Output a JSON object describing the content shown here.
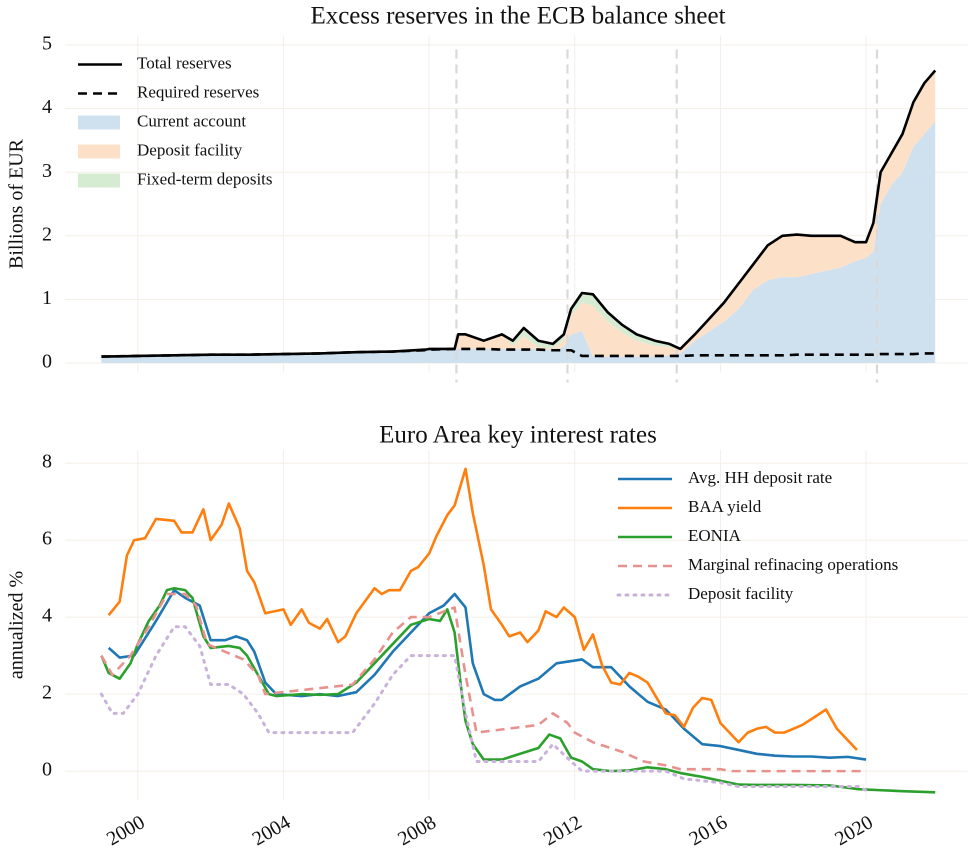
{
  "chart_data": [
    {
      "type": "line",
      "title": "Excess reserves in the ECB balance sheet",
      "ylabel": "Billions of EUR",
      "xlim": [
        1998,
        2022.8
      ],
      "xticks": [
        2000,
        2004,
        2008,
        2012,
        2016,
        2020
      ],
      "xtick_labels": false,
      "ylim": [
        -0.15,
        5.15
      ],
      "yticks": [
        0,
        1,
        2,
        3,
        4,
        5
      ],
      "grid": true,
      "legend": "upper left",
      "vlines": [
        2008.75,
        2011.8,
        2014.8,
        2020.3
      ],
      "x": [
        1999,
        2000,
        2001,
        2002,
        2003,
        2004,
        2005,
        2006,
        2007,
        2007.9,
        2008,
        2008.7,
        2008.8,
        2009,
        2009.5,
        2010,
        2010.3,
        2010.6,
        2011,
        2011.4,
        2011.7,
        2011.9,
        2012.2,
        2012.5,
        2012.9,
        2013.3,
        2013.7,
        2014.2,
        2014.6,
        2014.9,
        2015.3,
        2015.7,
        2016.1,
        2016.5,
        2016.9,
        2017.3,
        2017.7,
        2018.1,
        2018.5,
        2018.9,
        2019.3,
        2019.7,
        2020,
        2020.2,
        2020.4,
        2020.7,
        2021,
        2021.3,
        2021.6,
        2021.9
      ],
      "series": [
        {
          "name": "Total reserves",
          "color": "#000000",
          "style": "solid",
          "values": [
            0.1,
            0.11,
            0.12,
            0.13,
            0.13,
            0.14,
            0.15,
            0.17,
            0.18,
            0.21,
            0.22,
            0.22,
            0.45,
            0.45,
            0.35,
            0.45,
            0.35,
            0.55,
            0.35,
            0.3,
            0.45,
            0.85,
            1.1,
            1.08,
            0.8,
            0.6,
            0.45,
            0.35,
            0.3,
            0.22,
            0.45,
            0.7,
            0.95,
            1.25,
            1.55,
            1.85,
            2.0,
            2.02,
            2.0,
            2.0,
            2.0,
            1.9,
            1.9,
            2.2,
            3.0,
            3.3,
            3.6,
            4.1,
            4.4,
            4.6
          ]
        },
        {
          "name": "Required reserves",
          "color": "#000000",
          "style": "dashed",
          "values": [
            0.1,
            0.11,
            0.12,
            0.13,
            0.13,
            0.14,
            0.15,
            0.17,
            0.18,
            0.2,
            0.21,
            0.22,
            0.22,
            0.22,
            0.22,
            0.21,
            0.21,
            0.21,
            0.21,
            0.2,
            0.2,
            0.2,
            0.11,
            0.11,
            0.11,
            0.11,
            0.11,
            0.11,
            0.11,
            0.11,
            0.12,
            0.12,
            0.12,
            0.12,
            0.12,
            0.12,
            0.12,
            0.13,
            0.13,
            0.13,
            0.13,
            0.13,
            0.13,
            0.13,
            0.14,
            0.14,
            0.14,
            0.14,
            0.15,
            0.15
          ]
        },
        {
          "name": "Current account",
          "color": "#cfe1ef",
          "style": "area",
          "values": [
            0.1,
            0.11,
            0.12,
            0.13,
            0.13,
            0.14,
            0.15,
            0.17,
            0.18,
            0.21,
            0.22,
            0.22,
            0.22,
            0.22,
            0.22,
            0.22,
            0.22,
            0.22,
            0.22,
            0.21,
            0.25,
            0.45,
            0.5,
            0.1,
            0.1,
            0.1,
            0.1,
            0.1,
            0.12,
            0.15,
            0.35,
            0.5,
            0.65,
            0.85,
            1.15,
            1.3,
            1.35,
            1.35,
            1.4,
            1.45,
            1.5,
            1.6,
            1.65,
            1.75,
            2.5,
            2.8,
            3.0,
            3.4,
            3.6,
            3.8
          ]
        },
        {
          "name": "Deposit facility",
          "color": "#fde0c8",
          "style": "area",
          "values": [
            0,
            0,
            0,
            0,
            0,
            0,
            0,
            0,
            0,
            0,
            0,
            0,
            0.23,
            0.23,
            0.13,
            0.23,
            0.05,
            0.2,
            0.03,
            0.02,
            0.1,
            0.3,
            0.45,
            0.8,
            0.55,
            0.38,
            0.25,
            0.17,
            0.13,
            0.07,
            0.1,
            0.2,
            0.3,
            0.4,
            0.4,
            0.55,
            0.65,
            0.67,
            0.6,
            0.55,
            0.5,
            0.3,
            0.25,
            0.45,
            0.5,
            0.5,
            0.6,
            0.7,
            0.8,
            0.8
          ]
        },
        {
          "name": "Fixed-term deposits",
          "color": "#d5ebd2",
          "style": "area",
          "values": [
            0,
            0,
            0,
            0,
            0,
            0,
            0,
            0,
            0,
            0,
            0,
            0,
            0,
            0,
            0,
            0,
            0.08,
            0.13,
            0.1,
            0.07,
            0.1,
            0.1,
            0.15,
            0.18,
            0.15,
            0.12,
            0.1,
            0.08,
            0.05,
            0,
            0,
            0,
            0,
            0,
            0,
            0,
            0,
            0,
            0,
            0,
            0,
            0,
            0,
            0,
            0,
            0,
            0,
            0,
            0,
            0
          ]
        }
      ]
    },
    {
      "type": "line",
      "title": "Euro Area key interest rates",
      "ylabel": "annualized %",
      "xlim": [
        1998,
        2022.8
      ],
      "xticks": [
        2000,
        2004,
        2008,
        2012,
        2016,
        2020
      ],
      "xtick_labels": true,
      "ylim": [
        -0.75,
        8.34
      ],
      "yticks": [
        0,
        2,
        4,
        6,
        8
      ],
      "grid": true,
      "legend": "upper right",
      "series": [
        {
          "name": "Avg. HH deposit rate",
          "color": "#1f77b4",
          "style": "solid",
          "x": [
            1999.2,
            1999.5,
            1999.9,
            2000.5,
            2001,
            2001.3,
            2001.7,
            2002,
            2002.4,
            2002.7,
            2003,
            2003.2,
            2003.5,
            2003.8,
            2004.5,
            2005,
            2005.5,
            2006,
            2006.5,
            2007,
            2007.5,
            2008,
            2008.4,
            2008.7,
            2009,
            2009.2,
            2009.5,
            2009.8,
            2010,
            2010.5,
            2011,
            2011.5,
            2012.2,
            2012.5,
            2013,
            2013.5,
            2014,
            2014.5,
            2015,
            2015.5,
            2016,
            2016.5,
            2017,
            2017.5,
            2018,
            2018.5,
            2019,
            2019.5,
            2020
          ],
          "values": [
            3.2,
            2.95,
            3.0,
            3.9,
            4.7,
            4.5,
            4.3,
            3.4,
            3.4,
            3.5,
            3.4,
            3.1,
            2.3,
            2.0,
            1.95,
            2.0,
            1.95,
            2.05,
            2.5,
            3.1,
            3.6,
            4.1,
            4.3,
            4.6,
            4.25,
            2.8,
            2.0,
            1.85,
            1.85,
            2.2,
            2.4,
            2.8,
            2.9,
            2.7,
            2.7,
            2.2,
            1.8,
            1.6,
            1.1,
            0.7,
            0.65,
            0.55,
            0.45,
            0.4,
            0.38,
            0.38,
            0.35,
            0.37,
            0.3
          ]
        },
        {
          "name": "BAA yield",
          "color": "#ff7f0e",
          "style": "solid",
          "x": [
            1999.2,
            1999.5,
            1999.7,
            1999.9,
            2000.2,
            2000.5,
            2001,
            2001.2,
            2001.5,
            2001.8,
            2002,
            2002.3,
            2002.5,
            2002.8,
            2003,
            2003.2,
            2003.5,
            2004,
            2004.2,
            2004.5,
            2004.7,
            2005,
            2005.2,
            2005.5,
            2005.7,
            2006,
            2006.5,
            2006.7,
            2006.9,
            2007.2,
            2007.5,
            2007.7,
            2008,
            2008.2,
            2008.5,
            2008.7,
            2009,
            2009.2,
            2009.5,
            2009.7,
            2010,
            2010.2,
            2010.5,
            2010.7,
            2011,
            2011.2,
            2011.5,
            2011.7,
            2012,
            2012.25,
            2012.5,
            2012.75,
            2013,
            2013.25,
            2013.5,
            2013.75,
            2014,
            2014.25,
            2014.5,
            2014.75,
            2015,
            2015.25,
            2015.5,
            2015.75,
            2016,
            2016.25,
            2016.5,
            2016.75,
            2017,
            2017.25,
            2017.5,
            2017.75,
            2018,
            2018.25,
            2018.5,
            2018.9,
            2019.2,
            2019.45,
            2019.75
          ],
          "values": [
            4.05,
            4.4,
            5.6,
            6.0,
            6.05,
            6.55,
            6.5,
            6.2,
            6.2,
            6.8,
            6.0,
            6.4,
            6.95,
            6.3,
            5.2,
            4.9,
            4.1,
            4.2,
            3.8,
            4.2,
            3.85,
            3.7,
            3.95,
            3.35,
            3.5,
            4.1,
            4.75,
            4.6,
            4.7,
            4.7,
            5.2,
            5.3,
            5.65,
            6.1,
            6.65,
            6.9,
            7.85,
            6.7,
            5.35,
            4.2,
            3.8,
            3.5,
            3.6,
            3.35,
            3.65,
            4.15,
            4.0,
            4.25,
            4.0,
            3.15,
            3.55,
            2.75,
            2.3,
            2.25,
            2.55,
            2.45,
            2.3,
            1.9,
            1.5,
            1.45,
            1.15,
            1.65,
            1.9,
            1.85,
            1.25,
            1.0,
            0.75,
            1.0,
            1.1,
            1.15,
            1.0,
            1.0,
            1.1,
            1.2,
            1.35,
            1.6,
            1.1,
            0.85,
            0.55
          ]
        },
        {
          "name": "EONIA",
          "color": "#2ca02c",
          "style": "solid",
          "x": [
            1999,
            1999.2,
            1999.5,
            1999.8,
            2000,
            2000.3,
            2000.6,
            2000.8,
            2001,
            2001.3,
            2001.5,
            2001.8,
            2002,
            2002.5,
            2002.8,
            2003,
            2003.3,
            2003.6,
            2003.8,
            2004.5,
            2005,
            2005.5,
            2006,
            2006.5,
            2007,
            2007.5,
            2008,
            2008.3,
            2008.5,
            2008.7,
            2008.9,
            2009,
            2009.2,
            2009.5,
            2010,
            2010.5,
            2011,
            2011.3,
            2011.6,
            2011.9,
            2012.2,
            2012.5,
            2013,
            2013.5,
            2014,
            2014.5,
            2014.9,
            2015.5,
            2016,
            2016.5,
            2017,
            2018,
            2019,
            2019.8,
            2020.5,
            2021,
            2021.9
          ],
          "values": [
            3.0,
            2.55,
            2.4,
            2.8,
            3.3,
            3.9,
            4.3,
            4.7,
            4.75,
            4.7,
            4.5,
            3.5,
            3.2,
            3.25,
            3.2,
            3.0,
            2.5,
            2.0,
            1.95,
            2.0,
            1.98,
            2.0,
            2.3,
            2.8,
            3.3,
            3.8,
            3.95,
            3.9,
            4.2,
            3.6,
            2.0,
            1.3,
            0.7,
            0.3,
            0.3,
            0.45,
            0.6,
            0.95,
            0.85,
            0.35,
            0.25,
            0.05,
            0.0,
            0.02,
            0.1,
            0.05,
            -0.05,
            -0.15,
            -0.25,
            -0.35,
            -0.36,
            -0.36,
            -0.37,
            -0.47,
            -0.5,
            -0.52,
            -0.55
          ]
        },
        {
          "name": "Marginal refinacing operations",
          "color": "#e8928f",
          "style": "dashed",
          "x": [
            1999,
            1999.3,
            1999.8,
            2000.3,
            2000.8,
            2001.3,
            2001.6,
            2001.9,
            2002.9,
            2003.3,
            2003.5,
            2005.9,
            2006.5,
            2007,
            2007.5,
            2008,
            2008.7,
            2009,
            2009.3,
            2011,
            2011.4,
            2011.8,
            2012,
            2012.5,
            2013.3,
            2013.9,
            2014.5,
            2014.9,
            2016,
            2016.3,
            2020
          ],
          "values": [
            3.0,
            2.5,
            3.0,
            3.75,
            4.6,
            4.6,
            4.3,
            3.3,
            2.9,
            2.5,
            2.0,
            2.25,
            2.9,
            3.6,
            4.0,
            4.0,
            4.25,
            2.5,
            1.0,
            1.2,
            1.5,
            1.25,
            1.0,
            0.75,
            0.5,
            0.25,
            0.15,
            0.05,
            0.05,
            0.0,
            0.0
          ]
        },
        {
          "name": "Deposit facility",
          "color": "#c9b3da",
          "style": "dotted",
          "x": [
            1999,
            1999.3,
            1999.6,
            2000,
            2000.5,
            2001,
            2001.3,
            2001.7,
            2002,
            2002.5,
            2002.9,
            2003.3,
            2003.6,
            2005.9,
            2006.5,
            2007,
            2007.5,
            2008.7,
            2009,
            2009.3,
            2011,
            2011.4,
            2011.9,
            2012.2,
            2014.5,
            2015,
            2016,
            2016.5,
            2019.8,
            2020
          ],
          "values": [
            2.0,
            1.5,
            1.5,
            2.0,
            3.0,
            3.75,
            3.75,
            3.25,
            2.25,
            2.25,
            2.0,
            1.5,
            1.0,
            1.0,
            1.75,
            2.5,
            3.0,
            3.0,
            1.5,
            0.25,
            0.25,
            0.7,
            0.25,
            0.0,
            0.0,
            -0.2,
            -0.3,
            -0.4,
            -0.4,
            -0.5
          ]
        }
      ]
    }
  ]
}
